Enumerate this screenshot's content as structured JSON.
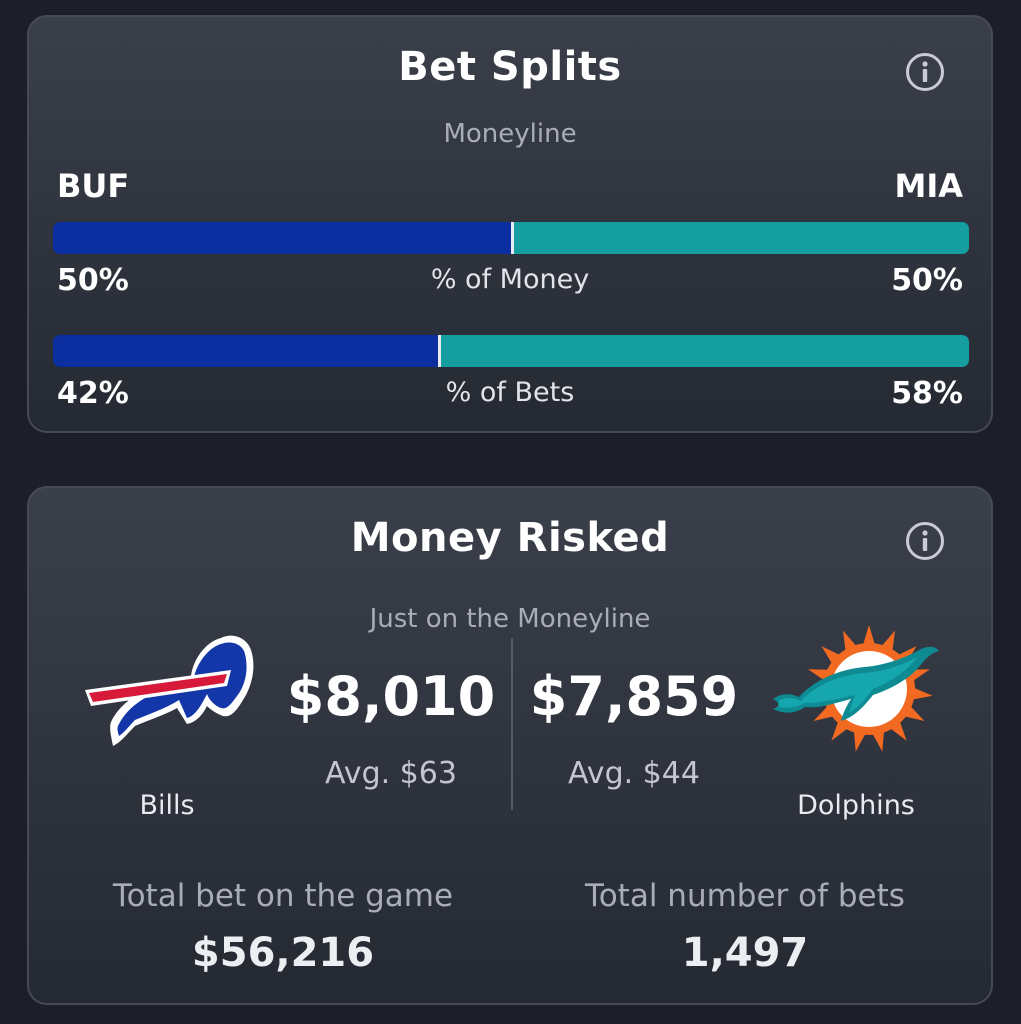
{
  "bet_splits": {
    "title": "Bet Splits",
    "subtitle": "Moneyline",
    "away_abbr": "BUF",
    "home_abbr": "MIA",
    "money": {
      "label": "% of Money",
      "away_pct": "50%",
      "home_pct": "50%",
      "away_value": 50,
      "home_value": 50
    },
    "bets": {
      "label": "% of Bets",
      "away_pct": "42%",
      "home_pct": "58%",
      "away_value": 42,
      "home_value": 58
    }
  },
  "money_risked": {
    "title": "Money Risked",
    "subtitle": "Just on the Moneyline",
    "away": {
      "team_name": "Bills",
      "amount": "$8,010",
      "avg": "Avg. $63",
      "logo_icon": "bills-logo"
    },
    "home": {
      "team_name": "Dolphins",
      "amount": "$7,859",
      "avg": "Avg. $44",
      "logo_icon": "dolphins-logo"
    },
    "total_bet_label": "Total bet on the game",
    "total_bet_value": "$56,216",
    "total_bets_label": "Total number of bets",
    "total_bets_value": "1,497"
  },
  "colors": {
    "away_bar": "#0b2fa0",
    "home_bar": "#159ea0",
    "background": "#1c1f27",
    "subtle_text": "#a9adb8"
  },
  "icons": {
    "info": "info-icon"
  }
}
